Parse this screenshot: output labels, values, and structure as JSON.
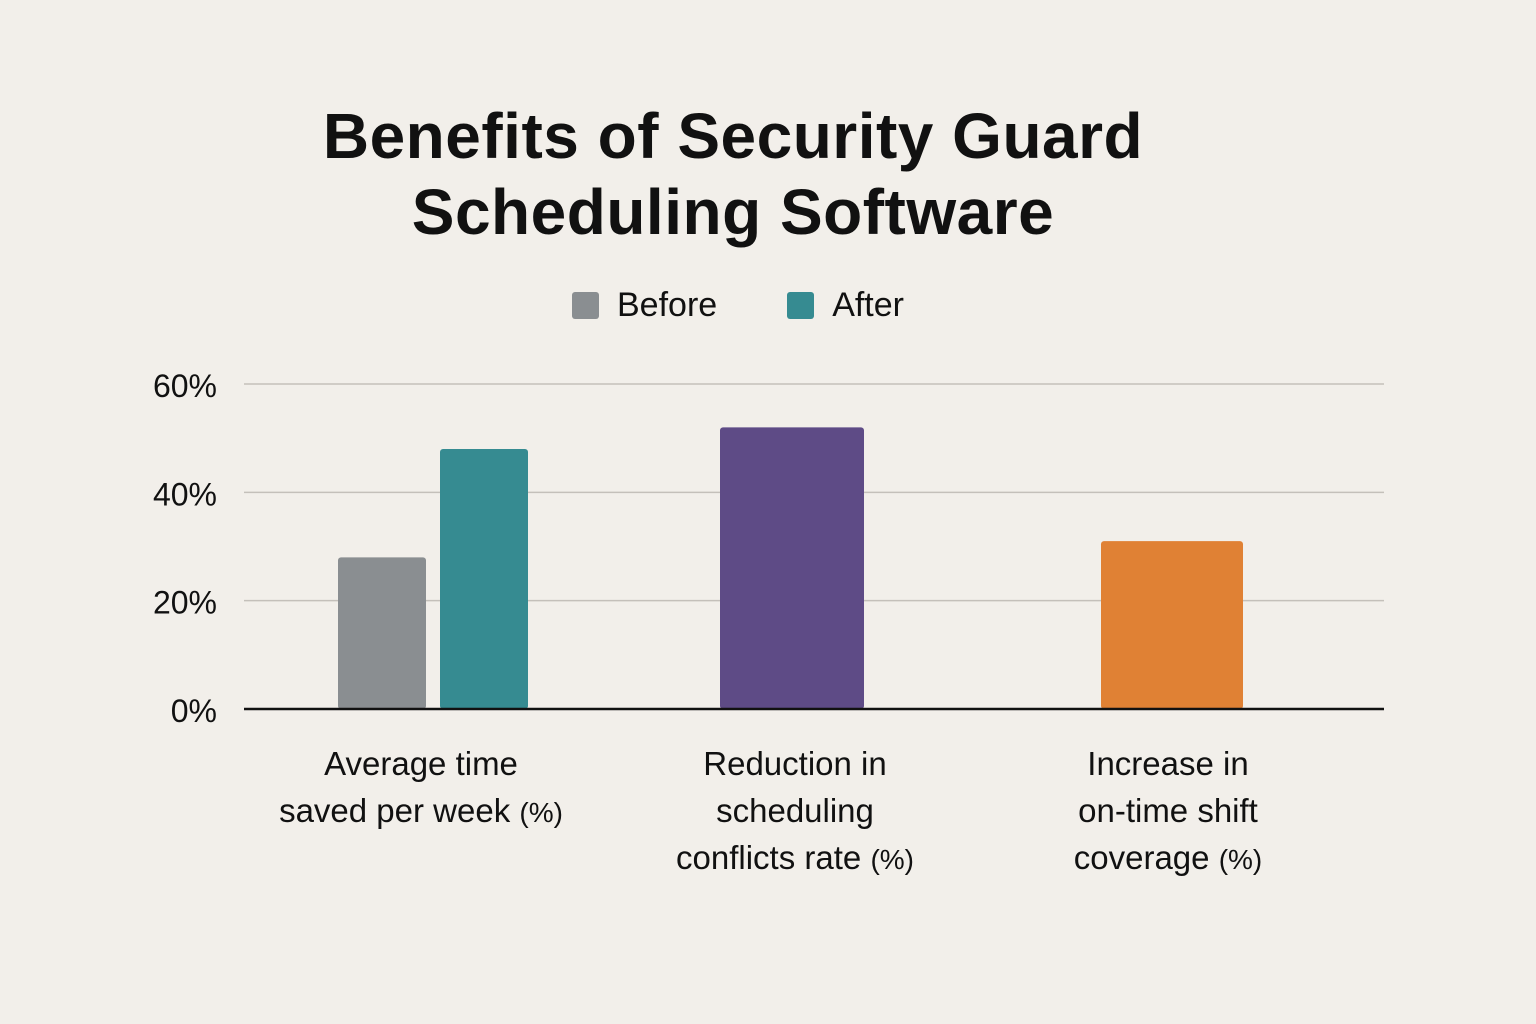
{
  "chart_data": {
    "type": "bar",
    "title": [
      "Benefits of Security Guard",
      "Scheduling Software"
    ],
    "xlabel": "",
    "ylabel": "",
    "ylim": [
      0,
      60
    ],
    "yticks": [
      0,
      20,
      40,
      60
    ],
    "ytick_labels": [
      "0%",
      "20%",
      "40%",
      "60%"
    ],
    "grid": true,
    "legend_position": "top-center",
    "legend": [
      {
        "name": "Before",
        "color": "#8a8e91"
      },
      {
        "name": "After",
        "color": "#368b91"
      }
    ],
    "categories": [
      {
        "lines": [
          "Average time",
          "saved per week"
        ],
        "suffix": "(%)"
      },
      {
        "lines": [
          "Reduction in",
          "scheduling",
          "conflicts rate"
        ],
        "suffix": "(%)"
      },
      {
        "lines": [
          "Increase in",
          "on-time shift",
          "coverage"
        ],
        "suffix": "(%)"
      }
    ],
    "bars": [
      {
        "category": 0,
        "series": "Before",
        "value": 28,
        "color": "#8a8e91"
      },
      {
        "category": 0,
        "series": "After",
        "value": 48,
        "color": "#368b91"
      },
      {
        "category": 1,
        "series": "",
        "value": 52,
        "color": "#5e4b86"
      },
      {
        "category": 2,
        "series": "",
        "value": 31,
        "color": "#e08134"
      }
    ]
  }
}
